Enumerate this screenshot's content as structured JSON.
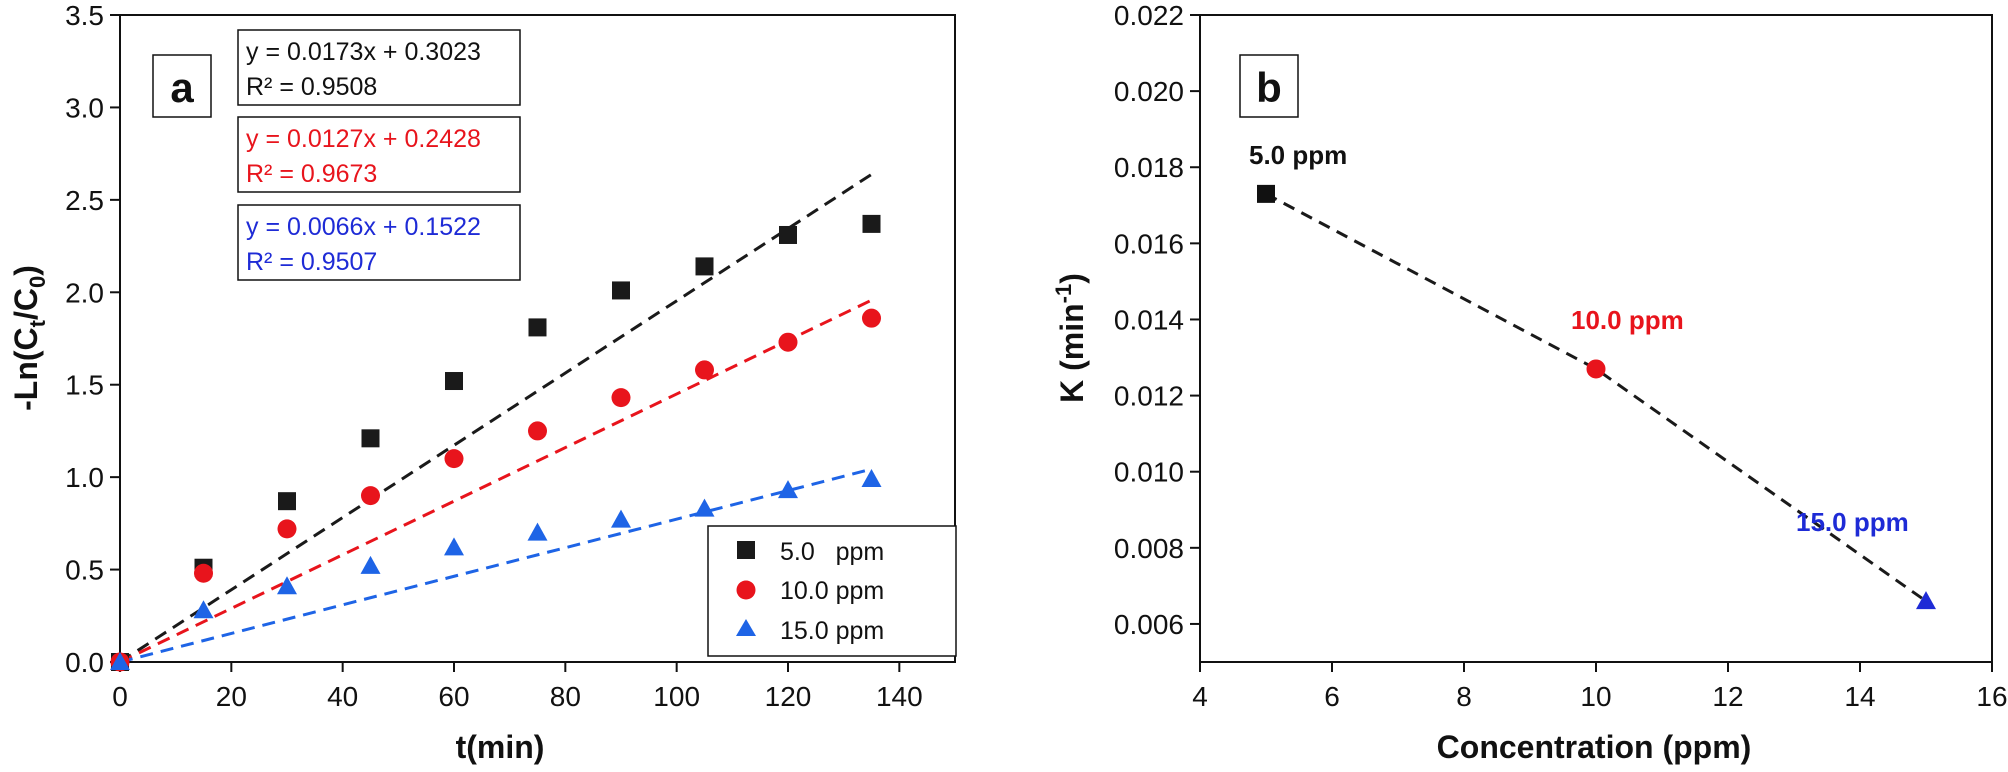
{
  "chart_data": [
    {
      "type": "scatter",
      "panel_label": "a",
      "xlabel": "t(min)",
      "ylabel_parts": [
        "-Ln(C",
        "t",
        "/C",
        "0",
        ")"
      ],
      "xlim": [
        0,
        150
      ],
      "ylim": [
        0,
        3.5
      ],
      "xticks": [
        "0",
        "20",
        "40",
        "60",
        "80",
        "100",
        "120",
        "140"
      ],
      "yticks": [
        "0.0",
        "0.5",
        "1.0",
        "1.5",
        "2.0",
        "2.5",
        "3.0",
        "3.5"
      ],
      "legend_position": "bottom-right",
      "series": [
        {
          "name": "5.0   ppm",
          "color": "#1a1a1a",
          "marker": "square",
          "x": [
            0,
            15,
            30,
            45,
            60,
            75,
            90,
            105,
            120,
            135
          ],
          "y": [
            0,
            0.51,
            0.87,
            1.21,
            1.52,
            1.81,
            2.01,
            2.14,
            2.31,
            2.37
          ],
          "fit": {
            "slope": 0.0173,
            "intercept": 0.3023,
            "x_range": [
              0,
              135
            ]
          },
          "equation": "y = 0.0173x + 0.3023",
          "r2": "R² = 0.9508"
        },
        {
          "name": "10.0 ppm",
          "color": "#e8141c",
          "marker": "circle",
          "x": [
            0,
            15,
            30,
            45,
            60,
            75,
            90,
            105,
            120,
            135
          ],
          "y": [
            0,
            0.48,
            0.72,
            0.9,
            1.1,
            1.25,
            1.43,
            1.58,
            1.73,
            1.86
          ],
          "fit": {
            "slope": 0.0127,
            "intercept": 0.2428,
            "x_range": [
              0,
              135
            ]
          },
          "equation": "y = 0.0127x + 0.2428",
          "r2": "R² = 0.9673"
        },
        {
          "name": "15.0 ppm",
          "color": "#1e64e6",
          "marker": "triangle",
          "x": [
            0,
            15,
            30,
            45,
            60,
            75,
            90,
            105,
            120,
            135
          ],
          "y": [
            0,
            0.28,
            0.41,
            0.52,
            0.62,
            0.7,
            0.77,
            0.83,
            0.93,
            0.99
          ],
          "fit": {
            "slope": 0.0066,
            "intercept": 0.1522,
            "x_range": [
              0,
              135
            ]
          },
          "equation": "y = 0.0066x + 0.1522",
          "r2": "R² = 0.9507"
        }
      ]
    },
    {
      "type": "scatter",
      "panel_label": "b",
      "xlabel": "Concentration (ppm)",
      "ylabel_parts": [
        "K (min",
        "-1",
        ")"
      ],
      "xlim": [
        4,
        16
      ],
      "ylim": [
        0.005,
        0.022
      ],
      "xticks": [
        "4",
        "6",
        "8",
        "10",
        "12",
        "14",
        "16"
      ],
      "yticks": [
        "0.006",
        "0.008",
        "0.010",
        "0.012",
        "0.014",
        "0.016",
        "0.018",
        "0.020",
        "0.022"
      ],
      "line": {
        "style": "dashed",
        "color": "#1a1a1a"
      },
      "points": [
        {
          "x": 5,
          "y": 0.0173,
          "label": "5.0 ppm",
          "color": "#111111",
          "marker": "square"
        },
        {
          "x": 10,
          "y": 0.0127,
          "label": "10.0 ppm",
          "color": "#e8141c",
          "marker": "circle"
        },
        {
          "x": 15,
          "y": 0.0066,
          "label": "15.0 ppm",
          "color": "#1e2bd6",
          "marker": "triangle"
        }
      ]
    }
  ]
}
